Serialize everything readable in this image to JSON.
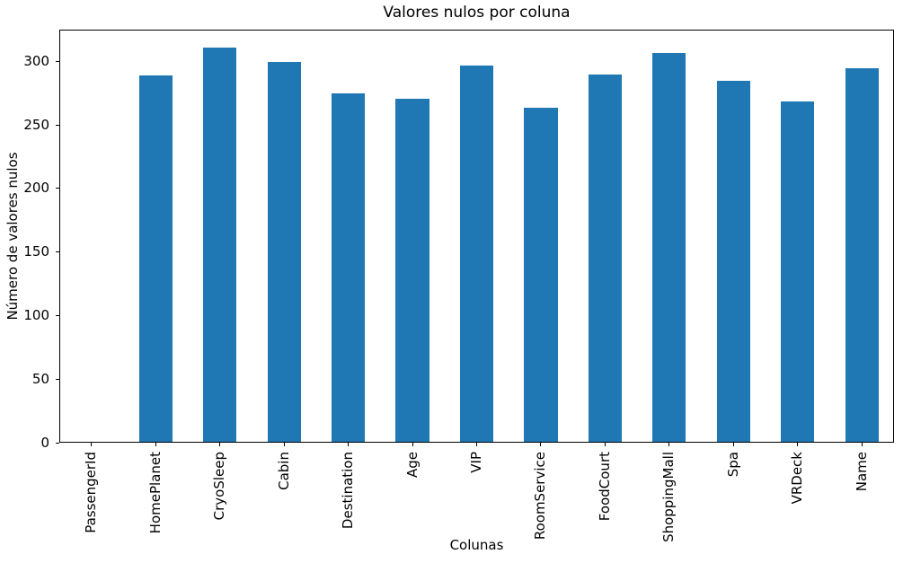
{
  "chart_data": {
    "type": "bar",
    "title": "Valores nulos por coluna",
    "xlabel": "Colunas",
    "ylabel": "Número de valores nulos",
    "categories": [
      "PassengerId",
      "HomePlanet",
      "CryoSleep",
      "Cabin",
      "Destination",
      "Age",
      "VIP",
      "RoomService",
      "FoodCourt",
      "ShoppingMall",
      "Spa",
      "VRDeck",
      "Name"
    ],
    "values": [
      0,
      288,
      310,
      299,
      274,
      270,
      296,
      263,
      289,
      306,
      284,
      268,
      294
    ],
    "yticks": [
      0,
      50,
      100,
      150,
      200,
      250,
      300
    ],
    "ylim": [
      0,
      325
    ],
    "grid": false,
    "legend": "none",
    "bar_color": "#1f77b4"
  }
}
